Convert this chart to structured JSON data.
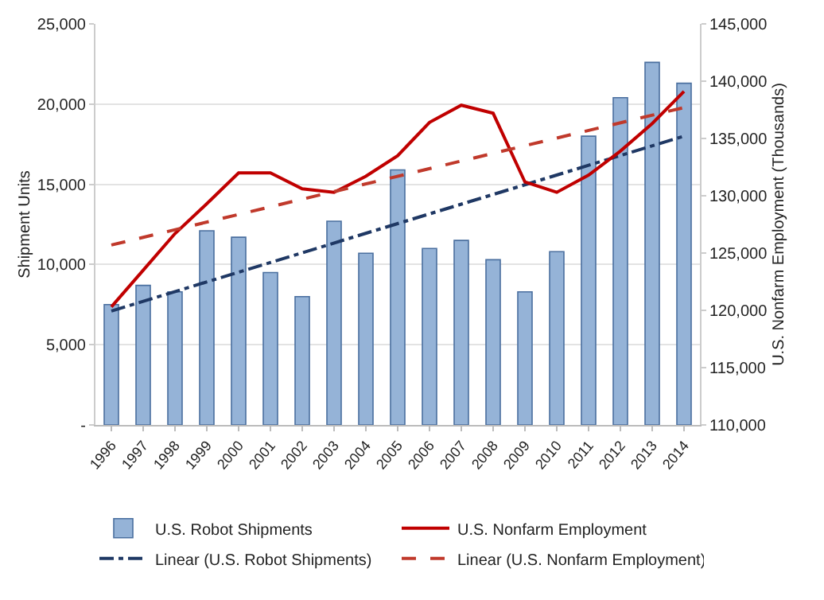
{
  "chart_data": {
    "type": "bar",
    "categories": [
      "1996",
      "1997",
      "1998",
      "1999",
      "2000",
      "2001",
      "2002",
      "2003",
      "2004",
      "2005",
      "2006",
      "2007",
      "2008",
      "2009",
      "2010",
      "2011",
      "2012",
      "2013",
      "2014"
    ],
    "ylabel": "Shipment Units",
    "y2label": "U.S. Nonfarm Employment (Thousands)",
    "ylim": [
      0,
      25000
    ],
    "yticks": [
      {
        "value": 0,
        "label": "-"
      },
      {
        "value": 5000,
        "label": "5,000"
      },
      {
        "value": 10000,
        "label": "10,000"
      },
      {
        "value": 15000,
        "label": "15,000"
      },
      {
        "value": 20000,
        "label": "20,000"
      },
      {
        "value": 25000,
        "label": "25,000"
      }
    ],
    "y2lim": [
      110000,
      145000
    ],
    "y2ticks": [
      {
        "value": 110000,
        "label": "110,000"
      },
      {
        "value": 115000,
        "label": "115,000"
      },
      {
        "value": 120000,
        "label": "120,000"
      },
      {
        "value": 125000,
        "label": "125,000"
      },
      {
        "value": 130000,
        "label": "130,000"
      },
      {
        "value": 135000,
        "label": "135,000"
      },
      {
        "value": 140000,
        "label": "140,000"
      },
      {
        "value": 145000,
        "label": "145,000"
      }
    ],
    "grid": "y",
    "legend": "bottom",
    "series": [
      {
        "name": "U.S. Robot Shipments",
        "color": "#95b3d7",
        "values": [
          7500,
          8700,
          8300,
          12100,
          11700,
          9500,
          8000,
          12700,
          10700,
          15900,
          11000,
          11500,
          10300,
          8300,
          10800,
          18000,
          20400,
          22600,
          21300
        ]
      },
      {
        "name": "U.S. Nonfarm Employment",
        "type": "line",
        "axis": "y2",
        "color": "#c00000",
        "line_style": "solid",
        "values": [
          120300,
          123500,
          126700,
          129300,
          132000,
          132000,
          130600,
          130300,
          131700,
          133500,
          136400,
          137900,
          137200,
          131200,
          130300,
          131800,
          133900,
          136300,
          139100
        ]
      },
      {
        "name": "Linear (U.S. Robot Shipments)",
        "type": "line",
        "color": "#1f3864",
        "line_style": "dashdot",
        "values": [
          7100,
          null,
          null,
          null,
          null,
          null,
          null,
          null,
          null,
          null,
          null,
          null,
          null,
          null,
          null,
          null,
          null,
          null,
          18000
        ]
      },
      {
        "name": "Linear (U.S. Nonfarm Employment)",
        "type": "line",
        "axis": "y2",
        "color": "#c0392b",
        "line_style": "dashed",
        "values": [
          125700,
          null,
          null,
          null,
          null,
          null,
          null,
          null,
          null,
          null,
          null,
          null,
          null,
          null,
          null,
          null,
          null,
          null,
          137700
        ]
      }
    ]
  }
}
